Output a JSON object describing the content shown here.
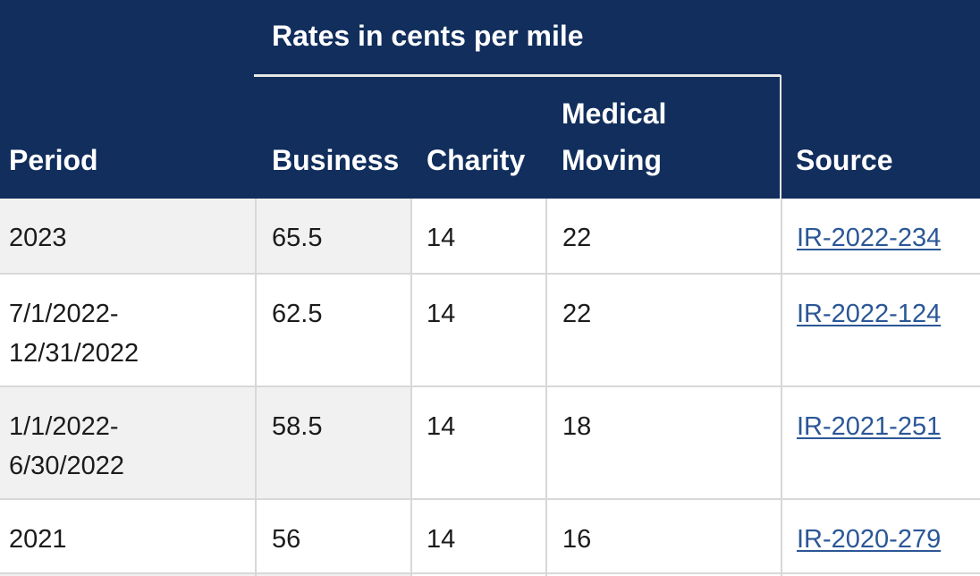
{
  "table": {
    "group_header": "Rates in cents per mile",
    "columns": {
      "period": "Period",
      "business": "Business",
      "charity": "Charity",
      "medical_line1": "Medical",
      "medical_line2": "Moving",
      "source": "Source"
    },
    "rows": [
      {
        "period": "2023",
        "business": "65.5",
        "charity": "14",
        "medical": "22",
        "source": "IR-2022-234"
      },
      {
        "period": "7/1/2022-\n12/31/2022",
        "business": "62.5",
        "charity": "14",
        "medical": "22",
        "source": "IR-2022-124"
      },
      {
        "period": "1/1/2022-\n6/30/2022",
        "business": "58.5",
        "charity": "14",
        "medical": "18",
        "source": "IR-2021-251"
      },
      {
        "period": "2021",
        "business": "56",
        "charity": "14",
        "medical": "16",
        "source": "IR-2020-279"
      }
    ]
  },
  "colors": {
    "header_bg": "#112e5d",
    "link": "#2b5797",
    "row_shade": "#f1f1f1"
  }
}
